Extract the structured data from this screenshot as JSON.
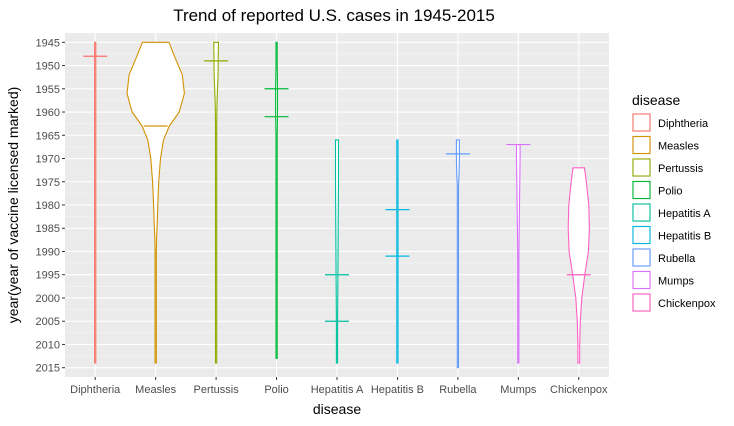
{
  "chart_data": {
    "type": "violin",
    "title": "Trend of reported U.S. cases in 1945-2015",
    "xlabel": "disease",
    "ylabel": "year(year of vaccine licensed marked)",
    "y_reversed": true,
    "ylim": [
      1943,
      2017
    ],
    "y_ticks": [
      1945,
      1950,
      1955,
      1960,
      1965,
      1970,
      1975,
      1980,
      1985,
      1990,
      1995,
      2000,
      2005,
      2010,
      2015
    ],
    "grid": true,
    "legend_position": "right",
    "legend_title": "disease",
    "categories": [
      "Diphtheria",
      "Measles",
      "Pertussis",
      "Polio",
      "Hepatitis A",
      "Hepatitis B",
      "Rubella",
      "Mumps",
      "Chickenpox"
    ],
    "series": [
      {
        "name": "Diphtheria",
        "color": "#F8766D",
        "vaccine_years": [
          1948
        ],
        "profile": [
          [
            1945,
            0.02
          ],
          [
            1980,
            0.02
          ],
          [
            2014,
            0.02
          ]
        ]
      },
      {
        "name": "Measles",
        "color": "#D39200",
        "vaccine_years": [
          1963
        ],
        "profile": [
          [
            1945,
            0.44
          ],
          [
            1948,
            0.62
          ],
          [
            1952,
            0.88
          ],
          [
            1956,
            0.95
          ],
          [
            1960,
            0.78
          ],
          [
            1963,
            0.45
          ],
          [
            1966,
            0.26
          ],
          [
            1970,
            0.16
          ],
          [
            1975,
            0.1
          ],
          [
            1980,
            0.07
          ],
          [
            1984,
            0.05
          ],
          [
            1987,
            0.03
          ],
          [
            1990,
            0.02
          ],
          [
            2014,
            0.02
          ]
        ]
      },
      {
        "name": "Pertussis",
        "color": "#93AA00",
        "vaccine_years": [
          1949
        ],
        "profile": [
          [
            1945,
            0.08
          ],
          [
            1948,
            0.07
          ],
          [
            1950,
            0.07
          ],
          [
            1953,
            0.06
          ],
          [
            1958,
            0.03
          ],
          [
            1962,
            0.02
          ],
          [
            1965,
            0.02
          ],
          [
            1970,
            0.02
          ],
          [
            2014,
            0.02
          ]
        ]
      },
      {
        "name": "Polio",
        "color": "#00BA38",
        "vaccine_years": [
          1955,
          1961
        ],
        "profile": [
          [
            1945,
            0.02
          ],
          [
            1950,
            0.02
          ],
          [
            1955,
            0.03
          ],
          [
            1960,
            0.03
          ],
          [
            1965,
            0.02
          ],
          [
            2013,
            0.02
          ]
        ]
      },
      {
        "name": "Hepatitis A",
        "color": "#00C19F",
        "vaccine_years": [
          1995,
          2005
        ],
        "profile": [
          [
            1966,
            0.05
          ],
          [
            1970,
            0.05
          ],
          [
            1975,
            0.05
          ],
          [
            1985,
            0.04
          ],
          [
            1995,
            0.03
          ],
          [
            2005,
            0.02
          ],
          [
            2014,
            0.02
          ]
        ]
      },
      {
        "name": "Hepatitis B",
        "color": "#00B9E3",
        "vaccine_years": [
          1981,
          1991
        ],
        "profile": [
          [
            1966,
            0.02
          ],
          [
            1975,
            0.02
          ],
          [
            1985,
            0.02
          ],
          [
            1995,
            0.02
          ],
          [
            2014,
            0.02
          ]
        ]
      },
      {
        "name": "Rubella",
        "color": "#619CFF",
        "vaccine_years": [
          1969
        ],
        "profile": [
          [
            1966,
            0.05
          ],
          [
            1970,
            0.05
          ],
          [
            1973,
            0.04
          ],
          [
            1976,
            0.02
          ],
          [
            2015,
            0.02
          ]
        ]
      },
      {
        "name": "Mumps",
        "color": "#DB72FB",
        "vaccine_years": [
          1967
        ],
        "profile": [
          [
            1967,
            0.06
          ],
          [
            1970,
            0.06
          ],
          [
            1975,
            0.05
          ],
          [
            1980,
            0.04
          ],
          [
            1985,
            0.03
          ],
          [
            1990,
            0.02
          ],
          [
            2014,
            0.02
          ]
        ]
      },
      {
        "name": "Chickenpox",
        "color": "#FF61C3",
        "vaccine_years": [
          1995
        ],
        "profile": [
          [
            1972,
            0.19
          ],
          [
            1975,
            0.25
          ],
          [
            1980,
            0.33
          ],
          [
            1985,
            0.35
          ],
          [
            1990,
            0.32
          ],
          [
            1995,
            0.2
          ],
          [
            2000,
            0.1
          ],
          [
            2005,
            0.05
          ],
          [
            2010,
            0.03
          ],
          [
            2014,
            0.03
          ]
        ]
      }
    ]
  }
}
